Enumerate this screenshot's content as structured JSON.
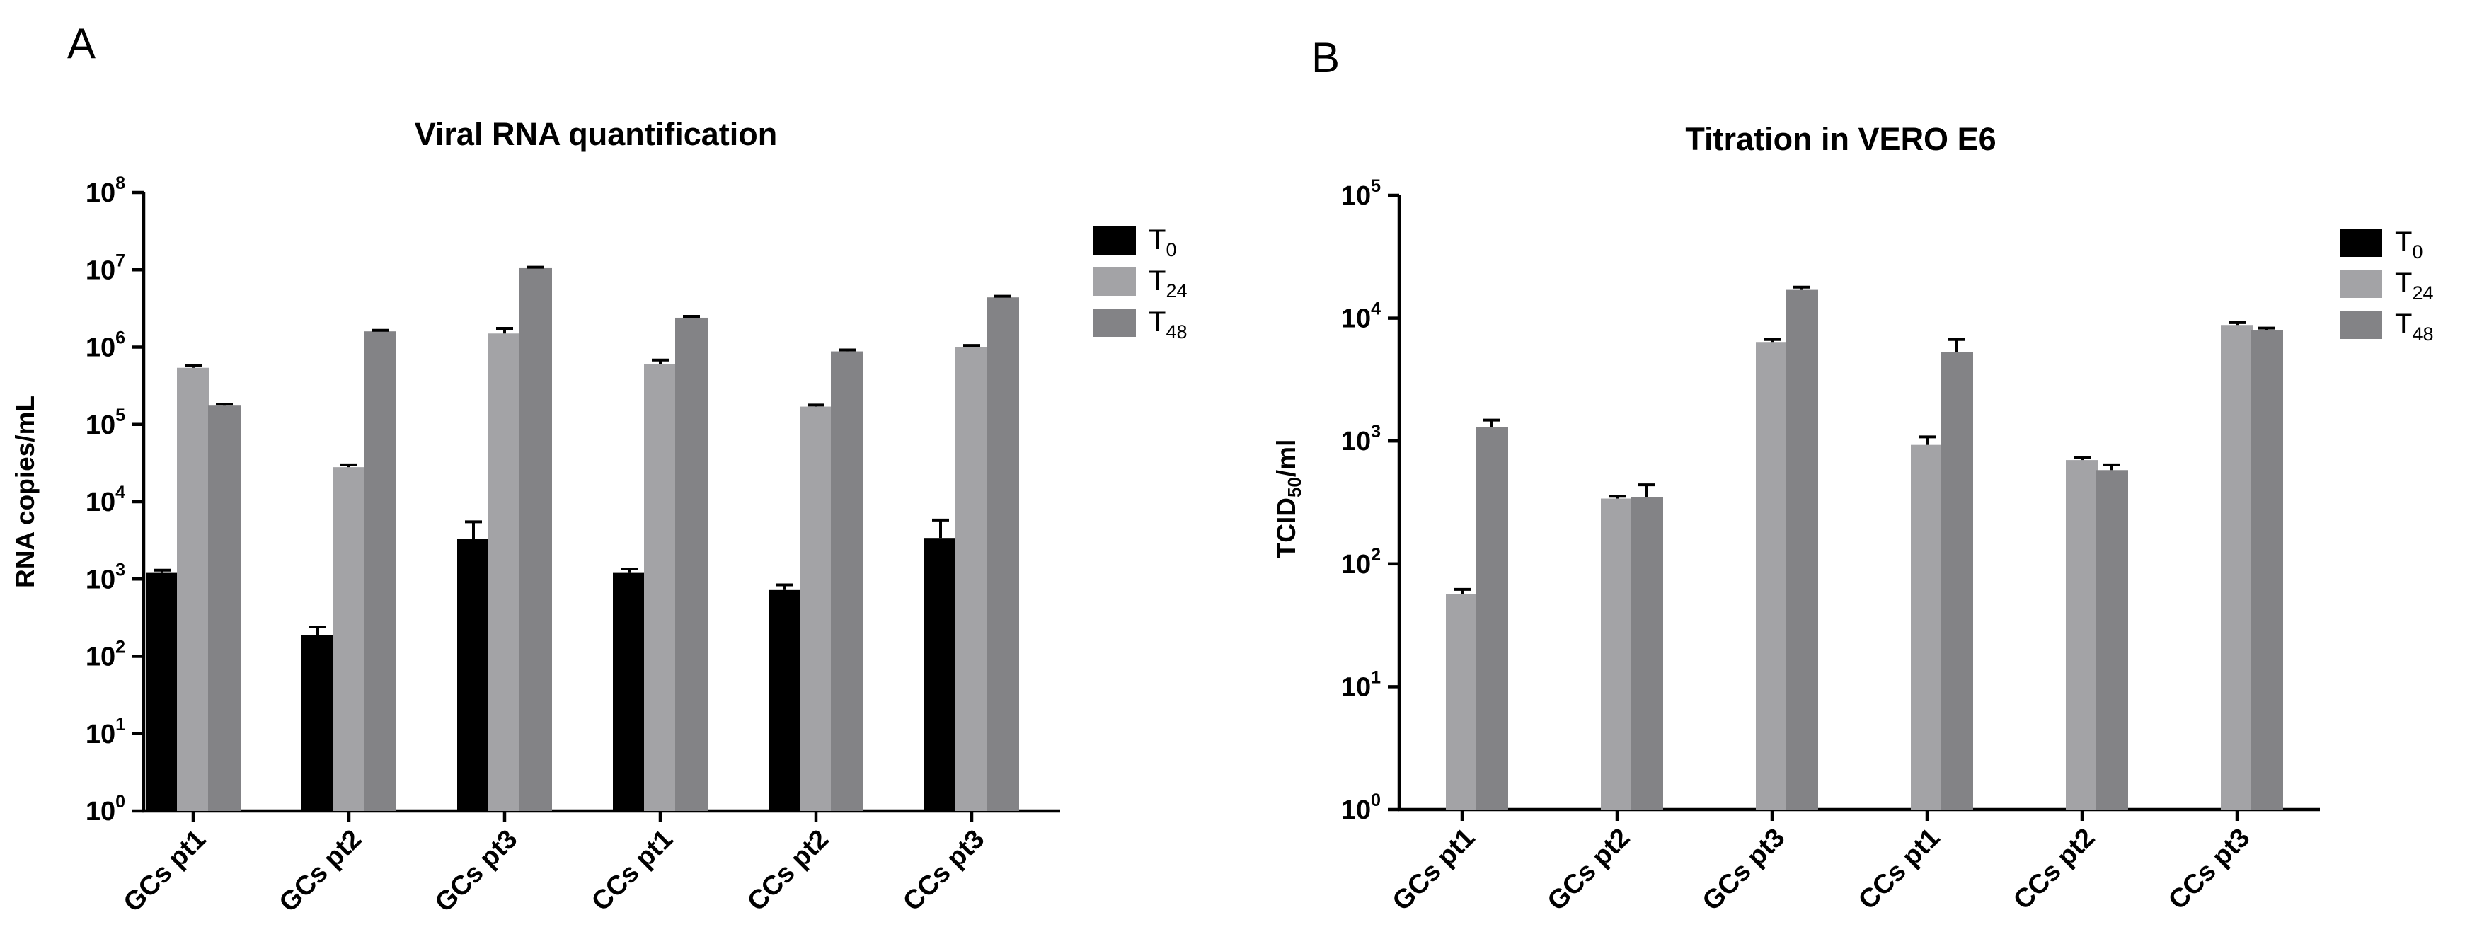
{
  "chart_data": [
    {
      "type": "bar",
      "panel_label": "A",
      "title": "Viral RNA quantification",
      "xlabel": "",
      "ylabel": "RNA copies/mL",
      "yscale": "log",
      "ylim": [
        1,
        100000000
      ],
      "yticks": [
        {
          "base": "10",
          "exp": "0"
        },
        {
          "base": "10",
          "exp": "1"
        },
        {
          "base": "10",
          "exp": "2"
        },
        {
          "base": "10",
          "exp": "3"
        },
        {
          "base": "10",
          "exp": "4"
        },
        {
          "base": "10",
          "exp": "5"
        },
        {
          "base": "10",
          "exp": "6"
        },
        {
          "base": "10",
          "exp": "7"
        },
        {
          "base": "10",
          "exp": "8"
        }
      ],
      "categories": [
        "GCs pt1",
        "GCs pt2",
        "GCs pt3",
        "CCs pt1",
        "CCs pt2",
        "CCs pt3"
      ],
      "series": [
        {
          "name": "T0",
          "label_main": "T",
          "label_sub": "0",
          "color": "#000000",
          "values": [
            1200,
            190,
            3300,
            1200,
            720,
            3400
          ],
          "errors": [
            100,
            50,
            2200,
            150,
            120,
            2400
          ]
        },
        {
          "name": "T24",
          "label_main": "T",
          "label_sub": "24",
          "color": "#a3a3a6",
          "values": [
            540000,
            28000,
            1500000,
            600000,
            170000,
            1000000
          ],
          "errors": [
            40000,
            2000,
            250000,
            80000,
            8000,
            50000
          ]
        },
        {
          "name": "T48",
          "label_main": "T",
          "label_sub": "48",
          "color": "#838386",
          "values": [
            175000,
            1600000,
            10500000,
            2400000,
            880000,
            4400000
          ],
          "errors": [
            8000,
            50000,
            300000,
            100000,
            40000,
            150000
          ]
        }
      ],
      "legend": "top-right",
      "grid": false
    },
    {
      "type": "bar",
      "panel_label": "B",
      "title": "Titration in VERO  E6",
      "xlabel": "",
      "ylabel_main": "TCID",
      "ylabel_sub": "50",
      "ylabel_tail": "/ml",
      "yscale": "log",
      "ylim": [
        1,
        100000
      ],
      "yticks": [
        {
          "base": "10",
          "exp": "0"
        },
        {
          "base": "10",
          "exp": "1"
        },
        {
          "base": "10",
          "exp": "2"
        },
        {
          "base": "10",
          "exp": "3"
        },
        {
          "base": "10",
          "exp": "4"
        },
        {
          "base": "10",
          "exp": "5"
        }
      ],
      "categories": [
        "GCs pt1",
        "GCs pt2",
        "GCs pt3",
        "CCs pt1",
        "CCs pt2",
        "CCs pt3"
      ],
      "series": [
        {
          "name": "T0",
          "label_main": "T",
          "label_sub": "0",
          "color": "#000000",
          "values": [
            null,
            null,
            null,
            null,
            null,
            null
          ],
          "errors": [
            0,
            0,
            0,
            0,
            0,
            0
          ]
        },
        {
          "name": "T24",
          "label_main": "T",
          "label_sub": "24",
          "color": "#a3a3a6",
          "values": [
            57,
            340,
            6400,
            930,
            700,
            8800
          ],
          "errors": [
            5,
            15,
            300,
            150,
            30,
            400
          ]
        },
        {
          "name": "T48",
          "label_main": "T",
          "label_sub": "48",
          "color": "#838386",
          "values": [
            1300,
            350,
            17000,
            5300,
            580,
            8000
          ],
          "errors": [
            180,
            90,
            900,
            1400,
            60,
            300
          ]
        }
      ],
      "legend": "top-right",
      "grid": false
    }
  ]
}
